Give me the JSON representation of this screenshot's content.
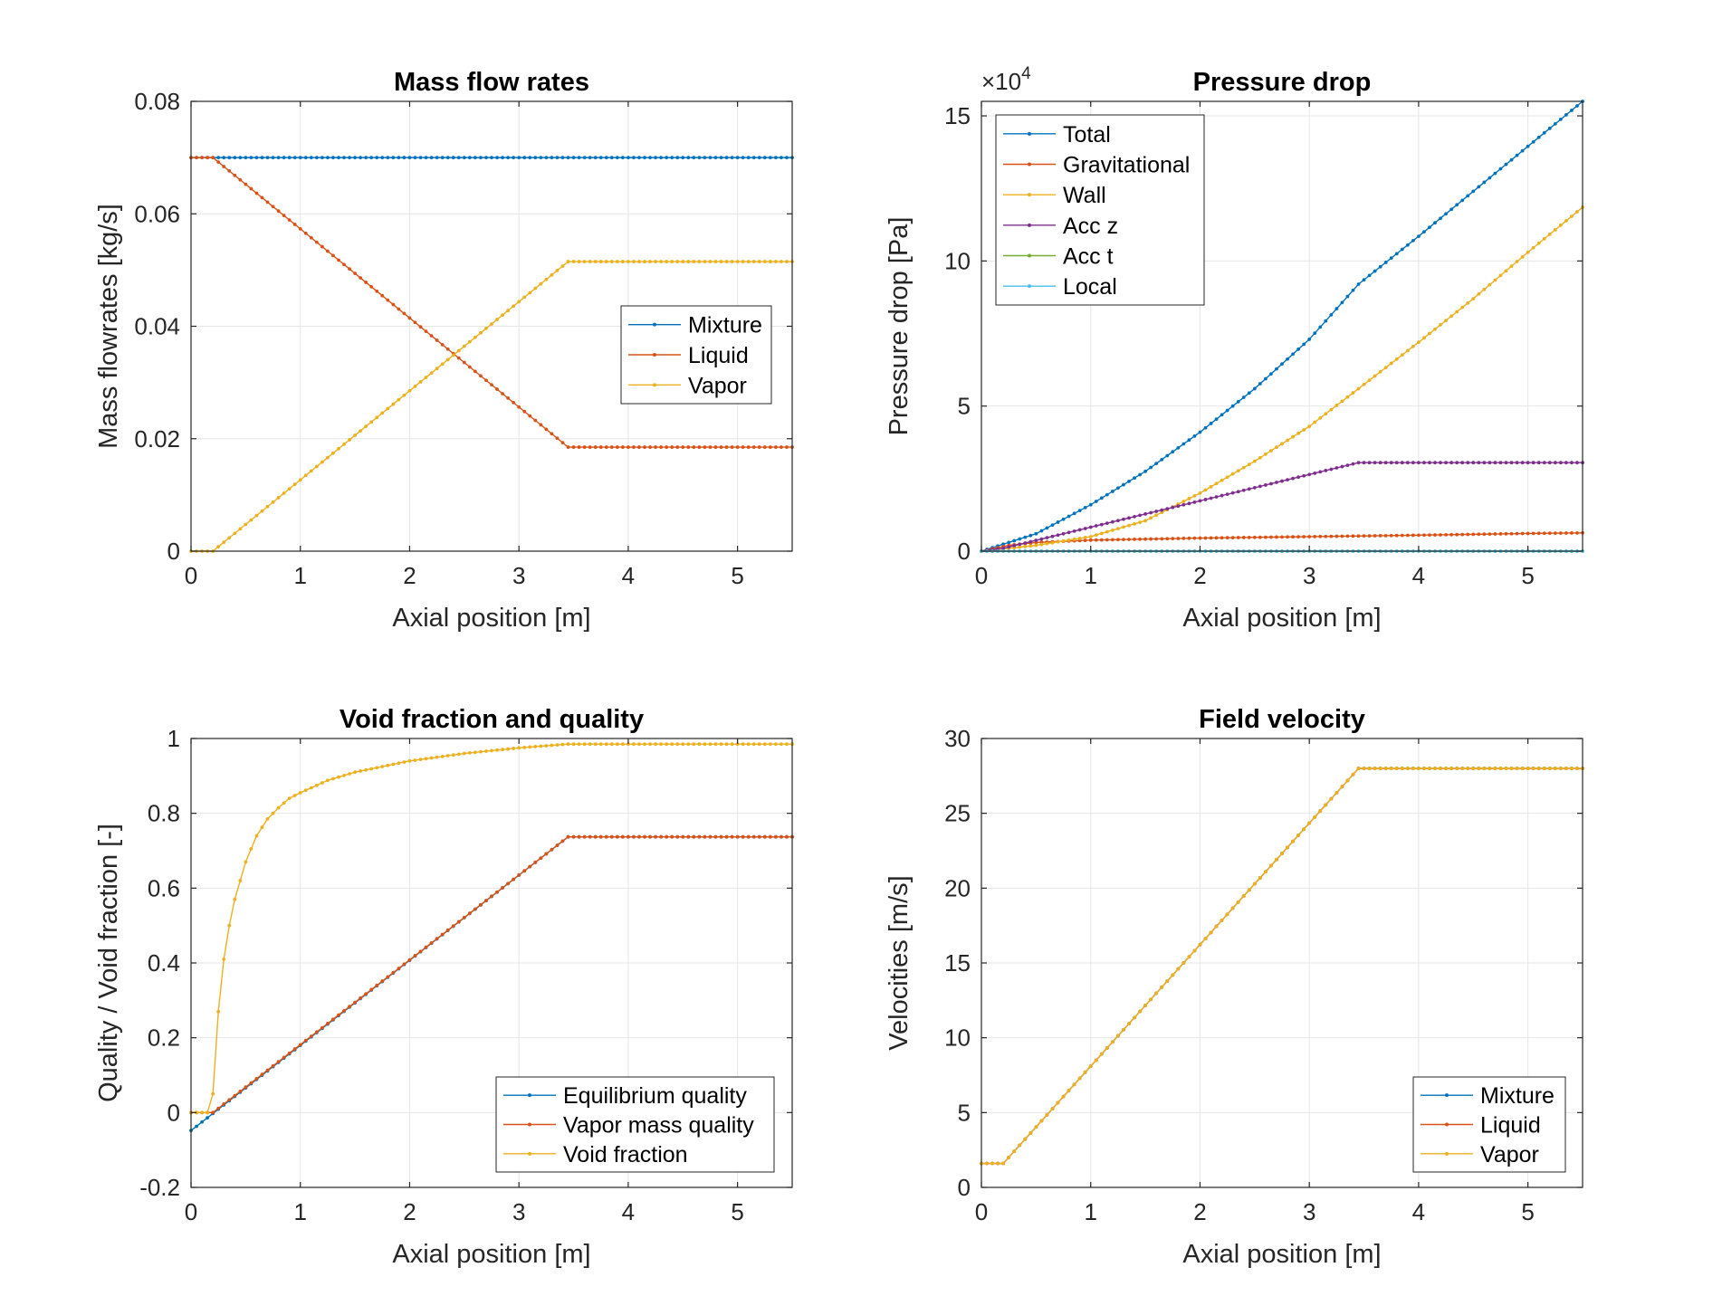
{
  "colors": {
    "c1": "#0072BD",
    "c2": "#D95319",
    "c3": "#EDB120",
    "c4": "#7E2F8E",
    "c5": "#77AC30",
    "c6": "#4DBEEE"
  },
  "chart_data": [
    {
      "type": "line",
      "title": "Mass flow rates",
      "xlabel": "Axial position [m]",
      "ylabel": "Mass flowrates [kg/s]",
      "xlim": [
        0,
        5.5
      ],
      "ylim": [
        0,
        0.08
      ],
      "xticks": [
        0,
        1,
        2,
        3,
        4,
        5
      ],
      "xtick_labels": [
        "0",
        "1",
        "2",
        "3",
        "4",
        "5"
      ],
      "yticks": [
        0,
        0.02,
        0.04,
        0.06,
        0.08
      ],
      "ytick_labels": [
        "0",
        "0.02",
        "0.04",
        "0.06",
        "0.08"
      ],
      "legend": "middle-right",
      "grid": true,
      "series": [
        {
          "name": "Mixture",
          "color": "c1",
          "points": [
            [
              0,
              0.07
            ],
            [
              5.5,
              0.07
            ]
          ]
        },
        {
          "name": "Liquid",
          "color": "c2",
          "points": [
            [
              0,
              0.07
            ],
            [
              0.2,
              0.07
            ],
            [
              3.45,
              0.0185
            ],
            [
              5.5,
              0.0185
            ]
          ]
        },
        {
          "name": "Vapor",
          "color": "c3",
          "points": [
            [
              0,
              0
            ],
            [
              0.2,
              0
            ],
            [
              3.45,
              0.0515
            ],
            [
              5.5,
              0.0515
            ]
          ]
        }
      ]
    },
    {
      "type": "line",
      "title": "Pressure drop",
      "xlabel": "Axial position [m]",
      "ylabel": "Pressure drop [Pa]",
      "exponent_label": "×10",
      "exponent_power": "4",
      "xlim": [
        0,
        5.5
      ],
      "ylim": [
        0,
        15.5
      ],
      "xticks": [
        0,
        1,
        2,
        3,
        4,
        5
      ],
      "xtick_labels": [
        "0",
        "1",
        "2",
        "3",
        "4",
        "5"
      ],
      "yticks": [
        0,
        5,
        10,
        15
      ],
      "ytick_labels": [
        "0",
        "5",
        "10",
        "15"
      ],
      "legend": "top-left",
      "grid": true,
      "series": [
        {
          "name": "Total",
          "color": "c1",
          "points": [
            [
              0,
              0
            ],
            [
              0.5,
              0.6
            ],
            [
              1,
              1.6
            ],
            [
              1.5,
              2.75
            ],
            [
              2,
              4.1
            ],
            [
              2.5,
              5.6
            ],
            [
              3,
              7.3
            ],
            [
              3.45,
              9.2
            ],
            [
              4,
              10.85
            ],
            [
              4.5,
              12.4
            ],
            [
              5,
              13.95
            ],
            [
              5.5,
              15.5
            ]
          ]
        },
        {
          "name": "Gravitational",
          "color": "c2",
          "points": [
            [
              0,
              0
            ],
            [
              0.25,
              0.2
            ],
            [
              0.5,
              0.3
            ],
            [
              1,
              0.38
            ],
            [
              2,
              0.45
            ],
            [
              3,
              0.5
            ],
            [
              4,
              0.55
            ],
            [
              5,
              0.61
            ],
            [
              5.5,
              0.63
            ]
          ]
        },
        {
          "name": "Wall",
          "color": "c3",
          "points": [
            [
              0,
              0
            ],
            [
              0.5,
              0.2
            ],
            [
              1,
              0.5
            ],
            [
              1.5,
              1.05
            ],
            [
              2,
              2.0
            ],
            [
              2.5,
              3.1
            ],
            [
              3,
              4.3
            ],
            [
              3.45,
              5.6
            ],
            [
              4,
              7.2
            ],
            [
              4.5,
              8.7
            ],
            [
              5,
              10.3
            ],
            [
              5.5,
              11.85
            ]
          ]
        },
        {
          "name": "Acc z",
          "color": "c4",
          "points": [
            [
              0,
              0
            ],
            [
              0.2,
              0.1
            ],
            [
              3.45,
              3.05
            ],
            [
              5.5,
              3.05
            ]
          ]
        },
        {
          "name": "Acc t",
          "color": "c5",
          "points": [
            [
              0,
              0
            ],
            [
              5.5,
              0
            ]
          ]
        },
        {
          "name": "Local",
          "color": "c6",
          "points": [
            [
              0,
              0
            ],
            [
              5.5,
              0
            ]
          ]
        }
      ]
    },
    {
      "type": "line",
      "title": "Void fraction and quality",
      "xlabel": "Axial position [m]",
      "ylabel": "Quality / Void fraction [-]",
      "xlim": [
        0,
        5.5
      ],
      "ylim": [
        -0.2,
        1
      ],
      "xticks": [
        0,
        1,
        2,
        3,
        4,
        5
      ],
      "xtick_labels": [
        "0",
        "1",
        "2",
        "3",
        "4",
        "5"
      ],
      "yticks": [
        -0.2,
        0,
        0.2,
        0.4,
        0.6,
        0.8,
        1
      ],
      "ytick_labels": [
        "-0.2",
        "0",
        "0.2",
        "0.4",
        "0.6",
        "0.8",
        "1"
      ],
      "legend": "bottom-right",
      "grid": true,
      "series": [
        {
          "name": "Equilibrium quality",
          "color": "c1",
          "points": [
            [
              0,
              -0.048
            ],
            [
              3.45,
              0.737
            ],
            [
              5.5,
              0.737
            ]
          ]
        },
        {
          "name": "Vapor mass quality",
          "color": "c2",
          "points": [
            [
              0,
              0
            ],
            [
              0.2,
              0
            ],
            [
              3.45,
              0.737
            ],
            [
              5.5,
              0.737
            ]
          ]
        },
        {
          "name": "Void fraction",
          "color": "c3",
          "points": [
            [
              0,
              0
            ],
            [
              0.15,
              0
            ],
            [
              0.2,
              0.05
            ],
            [
              0.25,
              0.27
            ],
            [
              0.3,
              0.41
            ],
            [
              0.35,
              0.5
            ],
            [
              0.4,
              0.57
            ],
            [
              0.5,
              0.67
            ],
            [
              0.6,
              0.74
            ],
            [
              0.7,
              0.785
            ],
            [
              0.8,
              0.815
            ],
            [
              0.9,
              0.84
            ],
            [
              1.0,
              0.855
            ],
            [
              1.25,
              0.888
            ],
            [
              1.5,
              0.91
            ],
            [
              2.0,
              0.94
            ],
            [
              2.5,
              0.96
            ],
            [
              3.0,
              0.975
            ],
            [
              3.45,
              0.985
            ],
            [
              5.5,
              0.985
            ]
          ]
        }
      ]
    },
    {
      "type": "line",
      "title": "Field velocity",
      "xlabel": "Axial position [m]",
      "ylabel": "Velocities [m/s]",
      "xlim": [
        0,
        5.5
      ],
      "ylim": [
        0,
        30
      ],
      "xticks": [
        0,
        1,
        2,
        3,
        4,
        5
      ],
      "xtick_labels": [
        "0",
        "1",
        "2",
        "3",
        "4",
        "5"
      ],
      "yticks": [
        0,
        5,
        10,
        15,
        20,
        25,
        30
      ],
      "ytick_labels": [
        "0",
        "5",
        "10",
        "15",
        "20",
        "25",
        "30"
      ],
      "legend": "bottom-right",
      "grid": true,
      "series": [
        {
          "name": "Mixture",
          "color": "c1",
          "points": [
            [
              0,
              1.6
            ],
            [
              0.2,
              1.6
            ],
            [
              3.45,
              28
            ],
            [
              5.5,
              28
            ]
          ]
        },
        {
          "name": "Liquid",
          "color": "c2",
          "points": [
            [
              0,
              1.6
            ],
            [
              0.2,
              1.6
            ],
            [
              3.45,
              28
            ],
            [
              5.5,
              28
            ]
          ]
        },
        {
          "name": "Vapor",
          "color": "c3",
          "points": [
            [
              0,
              1.6
            ],
            [
              0.2,
              1.6
            ],
            [
              3.45,
              28
            ],
            [
              5.5,
              28
            ]
          ]
        }
      ]
    }
  ]
}
